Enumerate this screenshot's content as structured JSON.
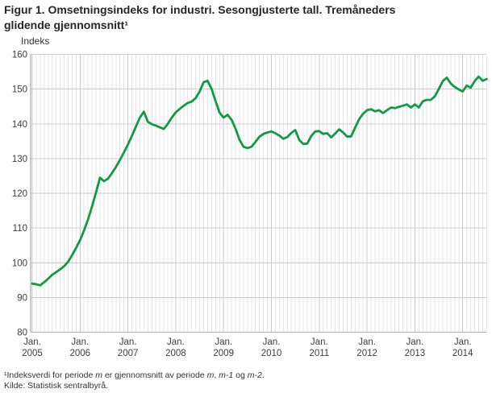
{
  "figure": {
    "title": "Figur 1. Omsetningsindeks for industri. Sesongjusterte tall. Tremåneders glidende gjennomsnitt¹"
  },
  "footnotes": {
    "note_parts": [
      {
        "t": "¹Indeksverdi for periode "
      },
      {
        "t": "m",
        "i": true
      },
      {
        "t": " er gjennomsnitt av periode "
      },
      {
        "t": "m",
        "i": true
      },
      {
        "t": ", "
      },
      {
        "t": "m-1",
        "i": true
      },
      {
        "t": " og "
      },
      {
        "t": "m-2",
        "i": true
      },
      {
        "t": "."
      }
    ],
    "source": "Kilde: Statistisk sentralbyrå."
  },
  "colors": {
    "line_green": "#0f9b46",
    "grid_minor": "#e6e6e6",
    "grid_year": "#c9c9c9",
    "grid_major": "#cccccc",
    "y_axis": "#999999",
    "x_axis": "#b3b3b3",
    "text": "#333333"
  },
  "chart_data": {
    "type": "line",
    "title": "Figur 1. Omsetningsindeks for industri. Sesongjusterte tall. Tremåneders glidende gjennomsnitt",
    "xlabel": "",
    "ylabel": "Indeks",
    "ylim": [
      80,
      160
    ],
    "yticks": [
      80,
      90,
      100,
      110,
      120,
      130,
      140,
      150,
      160
    ],
    "grid": true,
    "legend_position": "none",
    "frequency": "monthly",
    "x_start": "2005-01",
    "x_end": "2014-07",
    "x_ticks": [
      {
        "line1": "Jan.",
        "line2": "2005"
      },
      {
        "line1": "Jan.",
        "line2": "2006"
      },
      {
        "line1": "Jan.",
        "line2": "2007"
      },
      {
        "line1": "Jan.",
        "line2": "2008"
      },
      {
        "line1": "Jan.",
        "line2": "2009"
      },
      {
        "line1": "Jan.",
        "line2": "2010"
      },
      {
        "line1": "Jan.",
        "line2": "2011"
      },
      {
        "line1": "Jan.",
        "line2": "2012"
      },
      {
        "line1": "Jan.",
        "line2": "2013"
      },
      {
        "line1": "Jan.",
        "line2": "2014"
      }
    ],
    "series": [
      {
        "name": "Omsetningsindeks for industri, sesongjustert, tremåneders glidende gjennomsnitt",
        "color": "#0f9b46",
        "values": [
          94.0,
          93.8,
          93.5,
          94.4,
          95.4,
          96.5,
          97.3,
          98.1,
          99.0,
          100.3,
          102.2,
          104.3,
          106.5,
          109.3,
          112.5,
          116.2,
          120.3,
          124.5,
          123.5,
          124.2,
          125.8,
          127.6,
          129.6,
          131.8,
          134.0,
          136.5,
          139.2,
          141.8,
          143.5,
          140.6,
          139.9,
          139.5,
          139.0,
          138.5,
          140.0,
          141.8,
          143.3,
          144.3,
          145.2,
          146.0,
          146.4,
          147.4,
          149.3,
          152.0,
          152.4,
          150.0,
          146.5,
          143.2,
          141.8,
          142.6,
          141.2,
          138.6,
          135.4,
          133.4,
          133.0,
          133.4,
          134.8,
          136.3,
          137.1,
          137.5,
          137.8,
          137.3,
          136.6,
          135.7,
          136.2,
          137.4,
          138.2,
          135.3,
          134.2,
          134.3,
          136.5,
          137.8,
          137.9,
          137.1,
          137.3,
          136.1,
          137.2,
          138.4,
          137.5,
          136.3,
          136.4,
          138.9,
          141.3,
          142.9,
          143.9,
          144.2,
          143.6,
          143.9,
          143.1,
          143.9,
          144.7,
          144.5,
          144.9,
          145.2,
          145.6,
          144.7,
          145.6,
          144.7,
          146.5,
          146.9,
          146.9,
          147.9,
          150.0,
          152.3,
          153.3,
          151.6,
          150.6,
          149.9,
          149.3,
          151.0,
          150.4,
          152.3,
          153.6,
          152.4,
          152.9
        ]
      }
    ]
  }
}
